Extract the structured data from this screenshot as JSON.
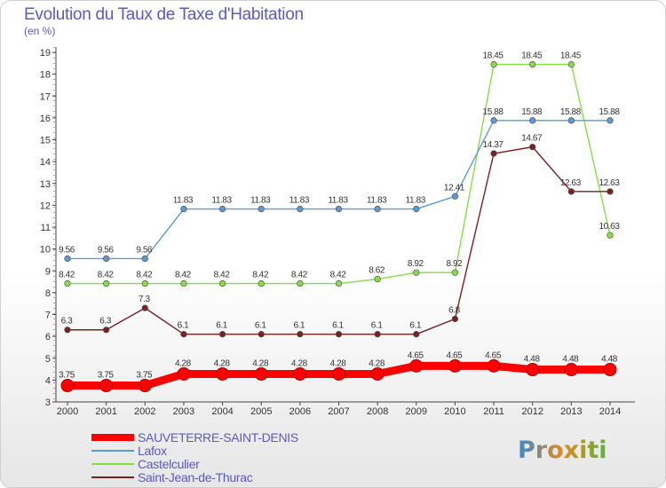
{
  "chart_data": {
    "type": "line",
    "title": "Evolution du Taux de Taxe d'Habitation",
    "unit_label": "(en %)",
    "xlabel": "",
    "ylabel": "",
    "ylim": [
      3,
      19
    ],
    "grid": false,
    "legend_position": "bottom-left",
    "x": [
      "2000",
      "2001",
      "2002",
      "2003",
      "2004",
      "2005",
      "2006",
      "2007",
      "2008",
      "2009",
      "2010",
      "2011",
      "2012",
      "2013",
      "2014"
    ],
    "series": [
      {
        "name": "SAUVETERRE-SAINT-DENIS",
        "color": "#ff0000",
        "values": [
          3.75,
          3.75,
          3.75,
          4.28,
          4.28,
          4.28,
          4.28,
          4.28,
          4.28,
          4.65,
          4.65,
          4.65,
          4.48,
          4.48,
          4.48
        ]
      },
      {
        "name": "Lafox",
        "color": "#5a9bd5",
        "values": [
          9.56,
          9.56,
          9.56,
          11.83,
          11.83,
          11.83,
          11.83,
          11.83,
          11.83,
          11.83,
          12.41,
          15.88,
          15.88,
          15.88,
          15.88
        ]
      },
      {
        "name": "Castelculier",
        "color": "#88dd44",
        "values": [
          8.42,
          8.42,
          8.42,
          8.42,
          8.42,
          8.42,
          8.42,
          8.42,
          8.62,
          8.92,
          8.92,
          18.45,
          18.45,
          18.45,
          10.63
        ]
      },
      {
        "name": "Saint-Jean-de-Thurac",
        "color": "#7a2020",
        "values": [
          6.3,
          6.3,
          7.3,
          6.1,
          6.1,
          6.1,
          6.1,
          6.1,
          6.1,
          6.1,
          6.8,
          14.37,
          14.67,
          12.63,
          12.63
        ]
      }
    ],
    "data_labels": [
      [
        "3.75",
        "3.75",
        "3.75",
        "4.28",
        "4.28",
        "4.28",
        "4.28",
        "4.28",
        "4.28",
        "4.65",
        "4.65",
        "4.65",
        "4.48",
        "4.48",
        "4.48"
      ],
      [
        "9.56",
        "9.56",
        "9.56",
        "11.83",
        "11.83",
        "11.83",
        "11.83",
        "11.83",
        "11.83",
        "11.83",
        "12.41",
        "15.88",
        "15.88",
        "15.88",
        "15.88"
      ],
      [
        "8.42",
        "8.42",
        "8.42",
        "8.42",
        "8.42",
        "8.42",
        "8.42",
        "8.42",
        "8.62",
        "8.92",
        "8.92",
        "18.45",
        "18.45",
        "18.45",
        "10.63"
      ],
      [
        "6.3",
        "6.3",
        "7.3",
        "6.1",
        "6.1",
        "6.1",
        "6.1",
        "6.1",
        "6.1",
        "6.1",
        "6.8",
        "14.37",
        "14.67",
        "12.63",
        "12.63"
      ]
    ],
    "y_ticks": [
      3,
      4,
      5,
      6,
      7,
      8,
      9,
      10,
      11,
      12,
      13,
      14,
      15,
      16,
      17,
      18,
      19
    ]
  },
  "logo": {
    "text": "Proxiti"
  }
}
